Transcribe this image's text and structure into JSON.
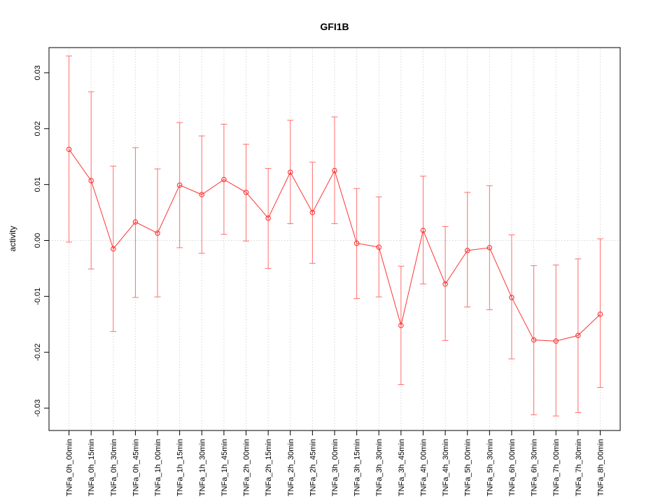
{
  "chart_data": {
    "type": "line",
    "title": "GFI1B",
    "ylabel": "activity",
    "xlabel": "",
    "legend": "none",
    "grid": "vertical-dotted-per-category-and-horizontal-dotted-at-zero",
    "marker": "open-circle",
    "ylim": [
      -0.034,
      0.0345
    ],
    "y_ticks": [
      -0.03,
      -0.02,
      -0.01,
      0,
      0.01,
      0.02,
      0.03
    ],
    "y_tick_labels": [
      "-0.03",
      "-0.02",
      "-0.01",
      "0.00",
      "0.01",
      "0.02",
      "0.03"
    ],
    "categories": [
      "TNFa_0h_00min",
      "TNFa_0h_15min",
      "TNFa_0h_30min",
      "TNFa_0h_45min",
      "TNFa_1h_00min",
      "TNFa_1h_15min",
      "TNFa_1h_30min",
      "TNFa_1h_45min",
      "TNFa_2h_00min",
      "TNFa_2h_15min",
      "TNFa_2h_30min",
      "TNFa_2h_45min",
      "TNFa_3h_00min",
      "TNFa_3h_15min",
      "TNFa_3h_30min",
      "TNFa_3h_45min",
      "TNFa_4h_00min",
      "TNFa_4h_30min",
      "TNFa_5h_00min",
      "TNFa_5h_30min",
      "TNFa_6h_00min",
      "TNFa_6h_30min",
      "TNFa_7h_00min",
      "TNFa_7h_30min",
      "TNFa_8h_00min"
    ],
    "series": [
      {
        "name": "activity",
        "values": [
          0.0163,
          0.0107,
          -0.0015,
          0.0033,
          0.0013,
          0.0099,
          0.0082,
          0.0109,
          0.0086,
          0.004,
          0.0122,
          0.005,
          0.0125,
          -0.0005,
          -0.0012,
          -0.0152,
          0.0018,
          -0.0078,
          -0.0018,
          -0.0013,
          -0.0102,
          -0.0178,
          -0.018,
          -0.017,
          -0.0132
        ],
        "err_low": [
          -0.0003,
          -0.0051,
          -0.0163,
          -0.0102,
          -0.0101,
          -0.0013,
          -0.0023,
          0.0011,
          -0.0001,
          -0.005,
          0.003,
          -0.0041,
          0.003,
          -0.0104,
          -0.0101,
          -0.0258,
          -0.0078,
          -0.0179,
          -0.0119,
          -0.0124,
          -0.0212,
          -0.0312,
          -0.0314,
          -0.0308,
          -0.0263
        ],
        "err_high": [
          0.033,
          0.0266,
          0.0133,
          0.0166,
          0.0128,
          0.0211,
          0.0187,
          0.0208,
          0.0172,
          0.0129,
          0.0215,
          0.014,
          0.0221,
          0.0093,
          0.0078,
          -0.0046,
          0.0115,
          0.0025,
          0.0086,
          0.0098,
          0.001,
          -0.0045,
          -0.0044,
          -0.0033,
          0.0003
        ]
      }
    ],
    "colors": {
      "series": "#ff3333",
      "errbar": "#ff6f6f",
      "grid": "#d6d6d6",
      "axis": "#000000",
      "background": "#ffffff"
    }
  }
}
